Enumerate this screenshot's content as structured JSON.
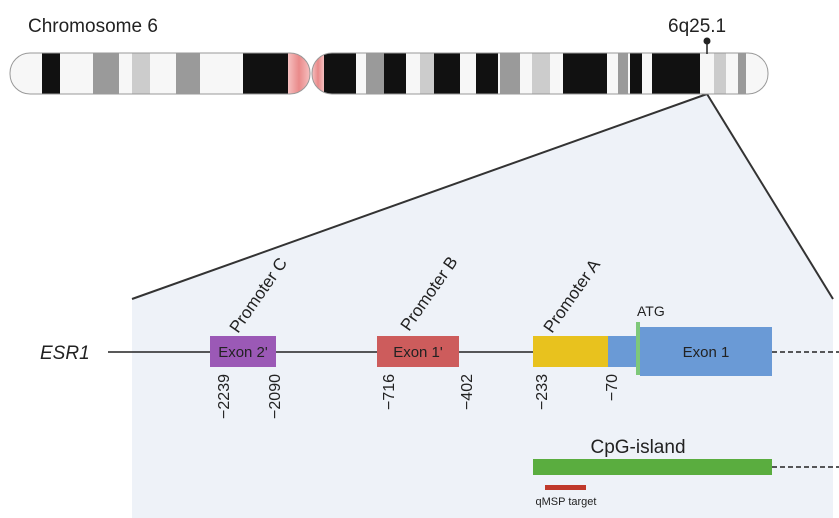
{
  "chromosome": {
    "title": "Chromosome 6",
    "band_label": "6q25.1"
  },
  "gene": {
    "name": "ESR1",
    "exons": [
      {
        "label": "Exon 2'",
        "color": "#9b59b6"
      },
      {
        "label": "Exon 1'",
        "color": "#cd5c5c"
      },
      {
        "label": "Exon 1",
        "color": "#6a9ad6"
      }
    ],
    "promoter_a_color": "#e8c21e",
    "utr_color": "#6a9ad6",
    "promoters": [
      "Promoter C",
      "Promoter B",
      "Promoter A"
    ],
    "start_codon": {
      "label": "ATG",
      "color": "#7ec87a"
    },
    "positions": [
      "−2239",
      "−2090",
      "−716",
      "−402",
      "−233",
      "−70"
    ]
  },
  "cpg_island": {
    "label": "CpG-island",
    "color": "#5aad3f"
  },
  "qmsp": {
    "label": "qMSP target",
    "color": "#c0392b"
  },
  "colors": {
    "zoom_panel": "#eef2f8",
    "centromere": "#f1a3a3",
    "dark_band": "#111111",
    "gray_band": "#9a9a9a",
    "light_band": "#cccccc"
  }
}
